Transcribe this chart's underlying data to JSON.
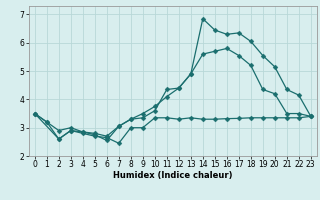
{
  "title": "",
  "xlabel": "Humidex (Indice chaleur)",
  "background_color": "#d8eeee",
  "grid_color": "#b8d8d8",
  "line_color": "#1a6e6e",
  "xlim": [
    -0.5,
    23.5
  ],
  "ylim": [
    2.0,
    7.3
  ],
  "yticks": [
    2,
    3,
    4,
    5,
    6,
    7
  ],
  "xticks": [
    0,
    1,
    2,
    3,
    4,
    5,
    6,
    7,
    8,
    9,
    10,
    11,
    12,
    13,
    14,
    15,
    16,
    17,
    18,
    19,
    20,
    21,
    22,
    23
  ],
  "line1_x": [
    0,
    1,
    2,
    3,
    4,
    5,
    6,
    7,
    8,
    9,
    10,
    11,
    12,
    13,
    14,
    15,
    16,
    17,
    18,
    19,
    20,
    21,
    22,
    23
  ],
  "line1_y": [
    3.5,
    3.2,
    2.6,
    2.9,
    2.8,
    2.7,
    2.65,
    2.45,
    3.0,
    3.0,
    3.35,
    3.35,
    3.3,
    3.35,
    3.3,
    3.3,
    3.32,
    3.33,
    3.35,
    3.35,
    3.35,
    3.35,
    3.35,
    3.4
  ],
  "line2_x": [
    0,
    1,
    2,
    3,
    4,
    5,
    6,
    7,
    8,
    9,
    10,
    11,
    12,
    13,
    14,
    15,
    16,
    17,
    18,
    19,
    20,
    21,
    22,
    23
  ],
  "line2_y": [
    3.5,
    3.2,
    2.9,
    3.0,
    2.85,
    2.8,
    2.7,
    3.05,
    3.3,
    3.5,
    3.75,
    4.1,
    4.4,
    4.9,
    5.6,
    5.7,
    5.8,
    5.55,
    5.2,
    4.35,
    4.2,
    3.5,
    3.5,
    3.4
  ],
  "line3_x": [
    0,
    2,
    3,
    4,
    5,
    6,
    7,
    8,
    9,
    10,
    11,
    12,
    13,
    14,
    15,
    16,
    17,
    18,
    19,
    20,
    21,
    22,
    23
  ],
  "line3_y": [
    3.5,
    2.6,
    2.9,
    2.85,
    2.75,
    2.55,
    3.05,
    3.3,
    3.35,
    3.6,
    4.35,
    4.4,
    4.9,
    6.85,
    6.45,
    6.3,
    6.35,
    6.05,
    5.55,
    5.15,
    4.35,
    4.15,
    3.4
  ],
  "xlabel_fontsize": 6.0,
  "tick_fontsize": 5.5,
  "marker_size": 2.5,
  "line_width": 0.9
}
